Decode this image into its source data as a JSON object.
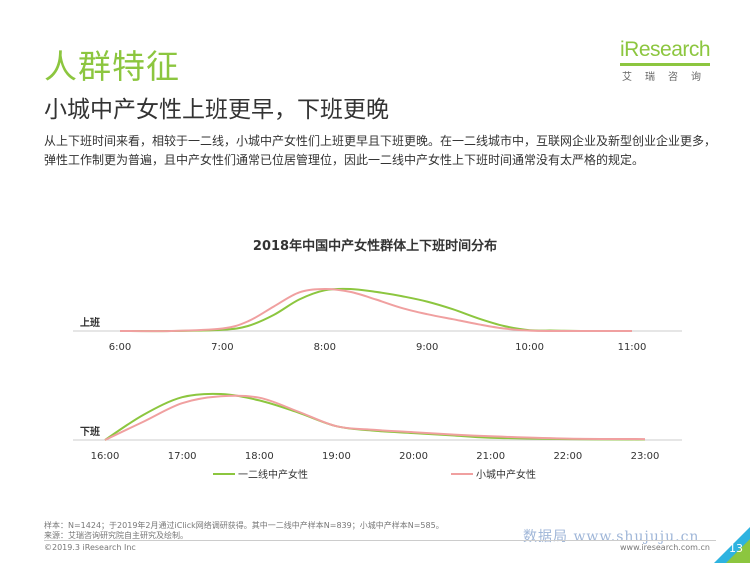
{
  "header": {
    "section_title": "人群特征",
    "headline": "小城中产女性上班更早，下班更晚",
    "description": "从上下班时间来看，相较于一二线，小城中产女性们上班更早且下班更晚。在一二线城市中，互联网企业及新型创业企业更多，弹性工作制更为普遍，且中产女性们通常已位居管理位，因此一二线中产女性上下班时间通常没有太严格的规定。"
  },
  "logo": {
    "brand": "iResearch",
    "sub": "艾瑞咨询"
  },
  "chart_data": {
    "type": "line",
    "title": "2018年中国中产女性群体上下班时间分布",
    "legend": [
      "一二线中产女性",
      "小城中产女性"
    ],
    "legend_placement": "bottom",
    "colors": {
      "tier12": "#8cc63f",
      "small": "#f0a0a0"
    },
    "panels": [
      {
        "label": "上班",
        "x_ticks": [
          "6:00",
          "7:00",
          "8:00",
          "9:00",
          "10:00",
          "11:00"
        ],
        "series": [
          {
            "name": "一二线中产女性",
            "x": [
              "6:00",
              "6:30",
              "7:00",
              "7:15",
              "7:30",
              "7:45",
              "8:00",
              "8:15",
              "8:30",
              "8:45",
              "9:00",
              "9:15",
              "9:30",
              "9:45",
              "10:00",
              "10:15",
              "10:30",
              "11:00"
            ],
            "values": [
              0,
              0,
              0.03,
              0.12,
              0.38,
              0.75,
              0.97,
              1.0,
              0.93,
              0.83,
              0.7,
              0.52,
              0.3,
              0.12,
              0.02,
              0.01,
              0,
              0
            ]
          },
          {
            "name": "小城中产女性",
            "x": [
              "6:00",
              "6:30",
              "7:00",
              "7:15",
              "7:30",
              "7:45",
              "8:00",
              "8:15",
              "8:30",
              "8:45",
              "9:00",
              "9:15",
              "9:30",
              "9:45",
              "10:00",
              "10:15",
              "10:30",
              "11:00"
            ],
            "values": [
              0,
              0,
              0.06,
              0.23,
              0.58,
              0.92,
              1.0,
              0.93,
              0.75,
              0.55,
              0.4,
              0.28,
              0.16,
              0.06,
              0.01,
              0,
              0,
              0
            ]
          }
        ]
      },
      {
        "label": "下班",
        "x_ticks": [
          "16:00",
          "17:00",
          "18:00",
          "19:00",
          "20:00",
          "21:00",
          "22:00",
          "23:00"
        ],
        "series": [
          {
            "name": "一二线中产女性",
            "x": [
              "16:00",
              "16:30",
              "17:00",
              "17:30",
              "18:00",
              "18:30",
              "19:00",
              "19:30",
              "20:00",
              "20:30",
              "21:00",
              "22:00",
              "23:00"
            ],
            "values": [
              0,
              0.55,
              0.93,
              1.0,
              0.86,
              0.6,
              0.3,
              0.2,
              0.15,
              0.1,
              0.05,
              0.02,
              0.01
            ]
          },
          {
            "name": "小城中产女性",
            "x": [
              "16:00",
              "16:30",
              "17:00",
              "17:30",
              "18:00",
              "18:30",
              "19:00",
              "19:30",
              "20:00",
              "20:30",
              "21:00",
              "22:00",
              "23:00"
            ],
            "values": [
              0,
              0.4,
              0.8,
              0.95,
              0.92,
              0.62,
              0.3,
              0.22,
              0.17,
              0.12,
              0.08,
              0.03,
              0.02
            ]
          }
        ]
      }
    ]
  },
  "footer": {
    "sample_note": "样本：N=1424；于2019年2月通过iClick网络调研获得。其中一二线中产样本N=839；小城中产样本N=585。",
    "source_note": "来源：艾瑞咨询研究院自主研究及绘制。",
    "copyright": "©2019.3 iResearch Inc",
    "website": "www.iresearch.com.cn",
    "page": "13",
    "watermark": "数据局 www.shujuju.cn"
  }
}
